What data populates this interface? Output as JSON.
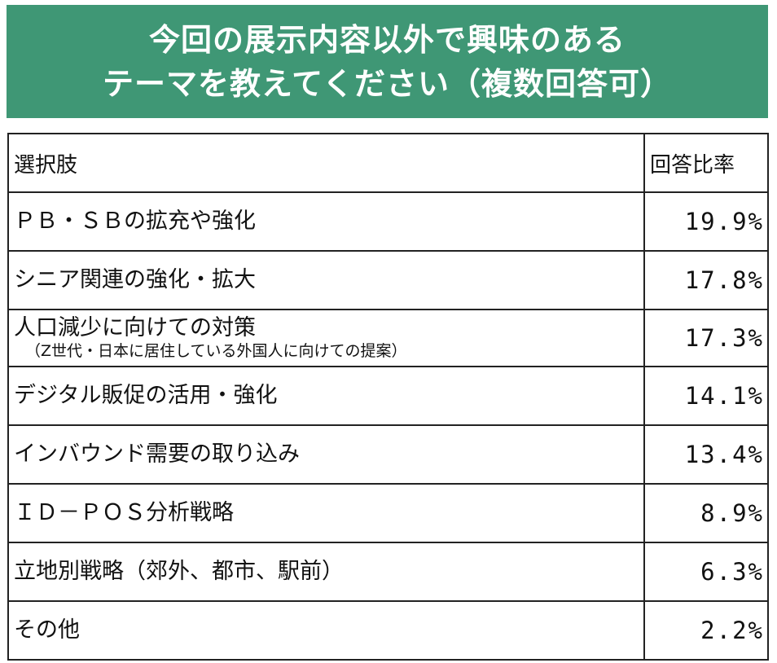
{
  "title": {
    "line1": "今回の展示内容以外で興味のある",
    "line2": "テーマを教えてください（複数回答可）"
  },
  "table": {
    "headers": {
      "choice": "選択肢",
      "rate": "回答比率"
    },
    "rows": [
      {
        "label": "ＰＢ・ＳＢの拡充や強化",
        "sub": "",
        "rate": "19.9%"
      },
      {
        "label": "シニア関連の強化・拡大",
        "sub": "",
        "rate": "17.8%"
      },
      {
        "label": "人口減少に向けての対策",
        "sub": "（Z世代・日本に居住している外国人に向けての提案）",
        "rate": "17.3%"
      },
      {
        "label": "デジタル販促の活用・強化",
        "sub": "",
        "rate": "14.1%"
      },
      {
        "label": "インバウンド需要の取り込み",
        "sub": "",
        "rate": "13.4%"
      },
      {
        "label": "ＩＤ－ＰＯＳ分析戦略",
        "sub": "",
        "rate": "8.9%"
      },
      {
        "label": "立地別戦略（郊外、都市、駅前）",
        "sub": "",
        "rate": "6.3%"
      },
      {
        "label": "その他",
        "sub": "",
        "rate": "2.2%"
      }
    ]
  },
  "colors": {
    "banner": "#3f9775",
    "banner_text": "#ffffff",
    "border": "#222222"
  }
}
